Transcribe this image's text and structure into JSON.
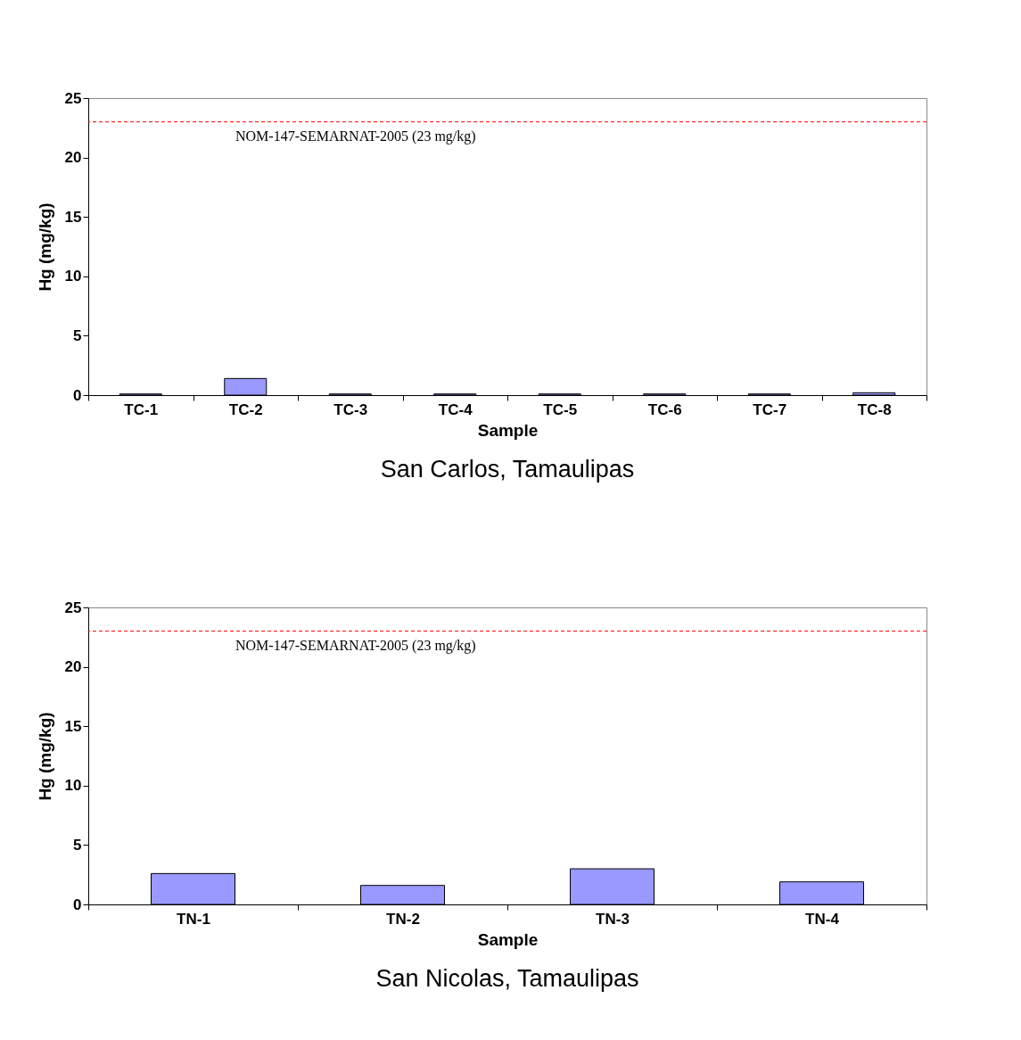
{
  "chart_data": [
    {
      "type": "bar",
      "title": "San Carlos, Tamaulipas",
      "xlabel": "Sample",
      "ylabel": "Hg (mg/kg)",
      "categories": [
        "TC-1",
        "TC-2",
        "TC-3",
        "TC-4",
        "TC-5",
        "TC-6",
        "TC-7",
        "TC-8"
      ],
      "values": [
        0.1,
        1.4,
        0.1,
        0.1,
        0.1,
        0.1,
        0.1,
        0.2
      ],
      "color": "#9999ff",
      "ylim": [
        0,
        25
      ],
      "yticks": [
        0,
        5,
        10,
        15,
        20,
        25
      ],
      "grid": false,
      "ref_lines": [
        {
          "axis": "y",
          "value": 23,
          "label": "NOM-147-SEMARNAT-2005 (23 mg/kg)",
          "color": "#ff0000",
          "line_style": "dashed"
        }
      ]
    },
    {
      "type": "bar",
      "title": "San Nicolas, Tamaulipas",
      "xlabel": "Sample",
      "ylabel": "Hg (mg/kg)",
      "categories": [
        "TN-1",
        "TN-2",
        "TN-3",
        "TN-4"
      ],
      "values": [
        2.6,
        1.6,
        3.0,
        1.9
      ],
      "color": "#9999ff",
      "ylim": [
        0,
        25
      ],
      "yticks": [
        0,
        5,
        10,
        15,
        20,
        25
      ],
      "grid": false,
      "ref_lines": [
        {
          "axis": "y",
          "value": 23,
          "label": "NOM-147-SEMARNAT-2005 (23 mg/kg)",
          "color": "#ff0000",
          "line_style": "dashed"
        }
      ]
    }
  ]
}
